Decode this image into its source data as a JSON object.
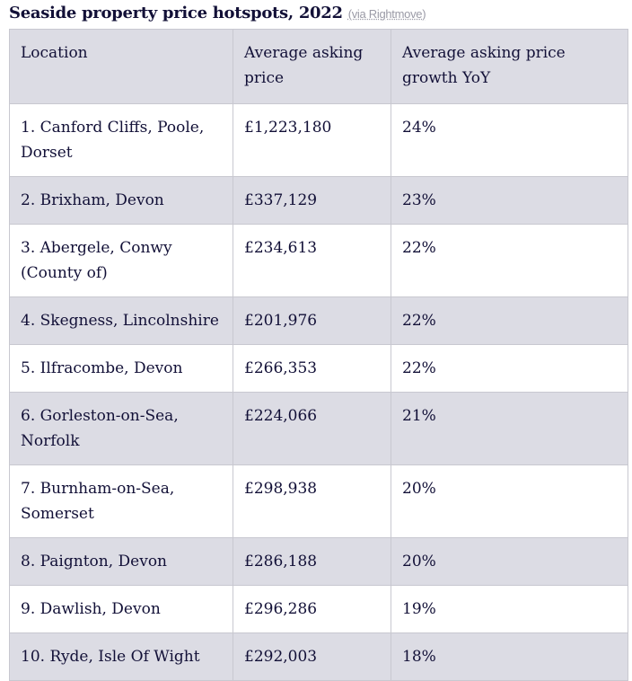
{
  "caption": {
    "title": "Seaside property price hotspots, 2022",
    "source": "(via Rightmove)"
  },
  "table": {
    "headers": [
      "Location",
      "Average asking price",
      "Average asking price growth YoY"
    ],
    "rows": [
      [
        "1. Canford Cliffs, Poole, Dorset",
        "£1,223,180",
        "24%"
      ],
      [
        "2. Brixham, Devon",
        "£337,129",
        "23%"
      ],
      [
        "3. Abergele, Conwy (County of)",
        "£234,613",
        "22%"
      ],
      [
        "4. Skegness, Lincolnshire",
        "£201,976",
        "22%"
      ],
      [
        "5. Ilfracombe, Devon",
        "£266,353",
        "22%"
      ],
      [
        "6. Gorleston-on-Sea, Norfolk",
        "£224,066",
        "21%"
      ],
      [
        "7. Burnham-on-Sea, Somerset",
        "£298,938",
        "20%"
      ],
      [
        "8. Paignton, Devon",
        "£286,188",
        "20%"
      ],
      [
        "9. Dawlish, Devon",
        "£296,286",
        "19%"
      ],
      [
        "10. Ryde, Isle Of Wight",
        "£292,003",
        "18%"
      ]
    ]
  }
}
